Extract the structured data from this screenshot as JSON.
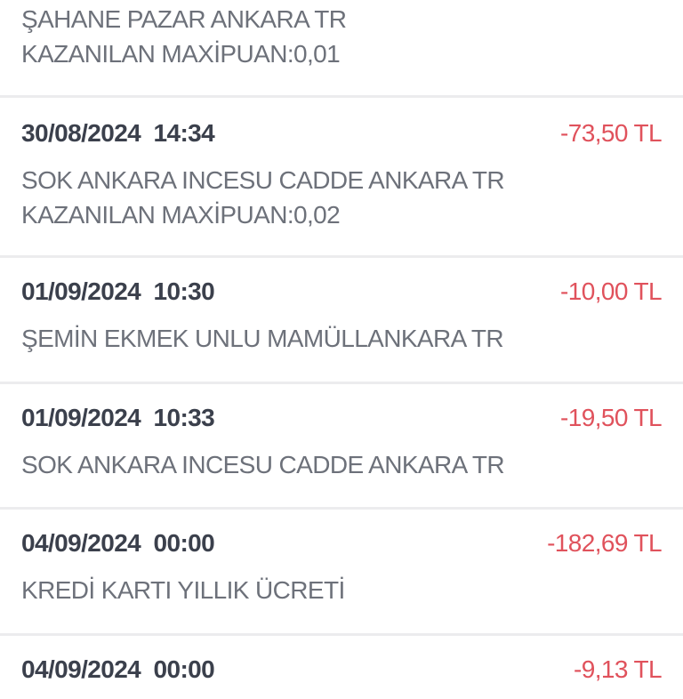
{
  "transactions": [
    {
      "date": "",
      "amount": "",
      "description": [
        "ŞAHANE PAZAR ANKARA TR",
        "KAZANILAN MAXİPUAN:0,01"
      ]
    },
    {
      "date": "30/08/2024  14:34",
      "amount": "-73,50 TL",
      "description": [
        "SOK ANKARA INCESU CADDE ANKARA TR",
        "KAZANILAN MAXİPUAN:0,02"
      ]
    },
    {
      "date": "01/09/2024  10:30",
      "amount": "-10,00 TL",
      "description": [
        "ŞEMİN EKMEK UNLU MAMÜLLANKARA TR"
      ]
    },
    {
      "date": "01/09/2024  10:33",
      "amount": "-19,50 TL",
      "description": [
        "SOK ANKARA INCESU CADDE ANKARA TR"
      ]
    },
    {
      "date": "04/09/2024  00:00",
      "amount": "-182,69 TL",
      "description": [
        "KREDİ KARTI YILLIK ÜCRETİ"
      ]
    },
    {
      "date": "04/09/2024  00:00",
      "amount": "-9,13 TL",
      "description": []
    }
  ],
  "colors": {
    "amount_negative": "#e0525c",
    "date": "#3b404c",
    "description": "#6d717a",
    "divider": "#ececee"
  }
}
